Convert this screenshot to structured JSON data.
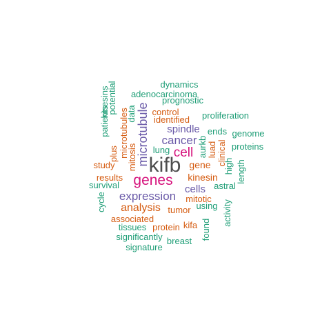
{
  "colors": {
    "gray": "#4d4d4d",
    "pink": "#d6127c",
    "purple": "#6a5aa8",
    "orange": "#d55b10",
    "green": "#1f9e77"
  },
  "words": [
    {
      "text": "kifb",
      "color": "gray"
    },
    {
      "text": "genes",
      "color": "pink"
    },
    {
      "text": "cell",
      "color": "pink"
    },
    {
      "text": "microtubule",
      "color": "purple"
    },
    {
      "text": "cancer",
      "color": "purple"
    },
    {
      "text": "expression",
      "color": "purple"
    },
    {
      "text": "spindle",
      "color": "purple"
    },
    {
      "text": "cells",
      "color": "purple"
    },
    {
      "text": "analysis",
      "color": "orange"
    },
    {
      "text": "gene",
      "color": "orange"
    },
    {
      "text": "kinesin",
      "color": "orange"
    },
    {
      "text": "tumor",
      "color": "orange"
    },
    {
      "text": "mitotic",
      "color": "orange"
    },
    {
      "text": "identified",
      "color": "orange"
    },
    {
      "text": "control",
      "color": "orange"
    },
    {
      "text": "microtubules",
      "color": "orange"
    },
    {
      "text": "mitosis",
      "color": "orange"
    },
    {
      "text": "plus",
      "color": "orange"
    },
    {
      "text": "data",
      "color": "green"
    },
    {
      "text": "study",
      "color": "orange"
    },
    {
      "text": "results",
      "color": "orange"
    },
    {
      "text": "associated",
      "color": "orange"
    },
    {
      "text": "protein",
      "color": "orange"
    },
    {
      "text": "kifa",
      "color": "orange"
    },
    {
      "text": "luad",
      "color": "orange"
    },
    {
      "text": "aurkb",
      "color": "green"
    },
    {
      "text": "clinical",
      "color": "orange"
    },
    {
      "text": "high",
      "color": "green"
    },
    {
      "text": "length",
      "color": "green"
    },
    {
      "text": "astral",
      "color": "green"
    },
    {
      "text": "using",
      "color": "green"
    },
    {
      "text": "activity",
      "color": "green"
    },
    {
      "text": "found",
      "color": "green"
    },
    {
      "text": "breast",
      "color": "green"
    },
    {
      "text": "signature",
      "color": "green"
    },
    {
      "text": "significantly",
      "color": "green"
    },
    {
      "text": "tissues",
      "color": "green"
    },
    {
      "text": "cycle",
      "color": "green"
    },
    {
      "text": "survival",
      "color": "green"
    },
    {
      "text": "lung",
      "color": "green"
    },
    {
      "text": "ends",
      "color": "green"
    },
    {
      "text": "genome",
      "color": "green"
    },
    {
      "text": "proteins",
      "color": "green"
    },
    {
      "text": "proliferation",
      "color": "green"
    },
    {
      "text": "prognostic",
      "color": "green"
    },
    {
      "text": "adenocarcinoma",
      "color": "green"
    },
    {
      "text": "dynamics",
      "color": "green"
    },
    {
      "text": "patients",
      "color": "green"
    },
    {
      "text": "kinesins",
      "color": "green"
    },
    {
      "text": "potential",
      "color": "green"
    }
  ]
}
